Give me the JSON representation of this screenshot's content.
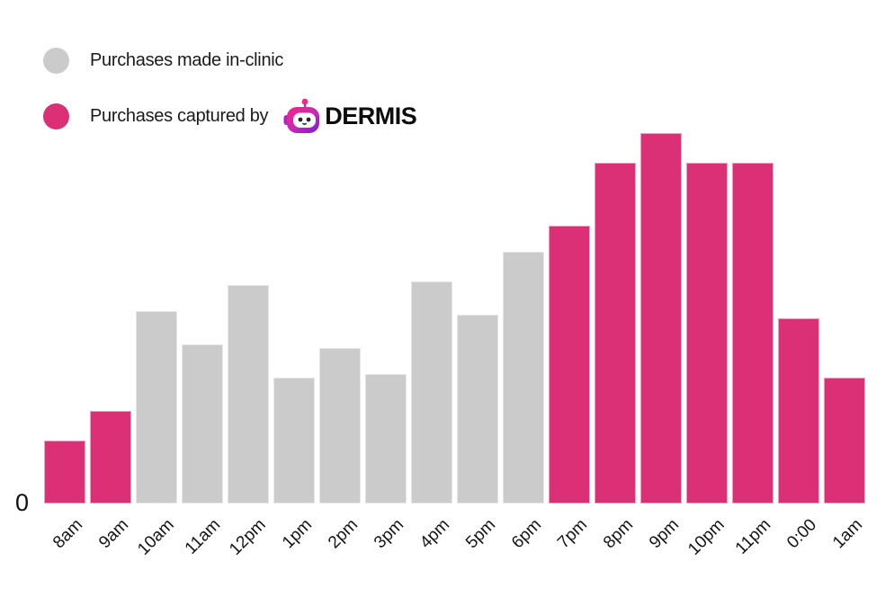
{
  "legend": {
    "in_clinic_label": "Purchases made in-clinic",
    "in_clinic_color": "#CBCBCB",
    "dermis_label_prefix": "Purchases captured by",
    "dermis_brand": "DERMIS",
    "dermis_color": "#DB3075",
    "position": "top-left"
  },
  "icons": {
    "dermis_logo": "robot-head-icon",
    "dermis_logo_gradient": [
      "#F72585",
      "#C52BB4",
      "#7A1FD0"
    ]
  },
  "chart_data": {
    "type": "bar",
    "title": "",
    "categories": [
      "8am",
      "9am",
      "10am",
      "11am",
      "12pm",
      "1pm",
      "2pm",
      "3pm",
      "4pm",
      "5pm",
      "6pm",
      "7pm",
      "8pm",
      "9pm",
      "10pm",
      "11pm",
      "0:00",
      "1am"
    ],
    "series": [
      {
        "name": "Purchases made in-clinic",
        "color": "#CBCBCB",
        "values": [
          null,
          null,
          52,
          43,
          59,
          34,
          42,
          35,
          60,
          51,
          68,
          null,
          null,
          null,
          null,
          null,
          null,
          null
        ]
      },
      {
        "name": "Purchases captured by DERMIS",
        "color": "#DB3075",
        "values": [
          17,
          25,
          null,
          null,
          null,
          null,
          null,
          null,
          null,
          null,
          null,
          75,
          92,
          100,
          92,
          92,
          50,
          34
        ]
      }
    ],
    "xlabel": "",
    "ylabel": "",
    "ylim": [
      0,
      100
    ],
    "y_zero_label": "0",
    "y_axis_ticks_visible": [
      "0"
    ],
    "value_units": "relative units (tallest bar = 100); y-axis shows only 0",
    "grid": false,
    "legend_position": "top-left",
    "x_tick_rotation_deg": -45
  }
}
